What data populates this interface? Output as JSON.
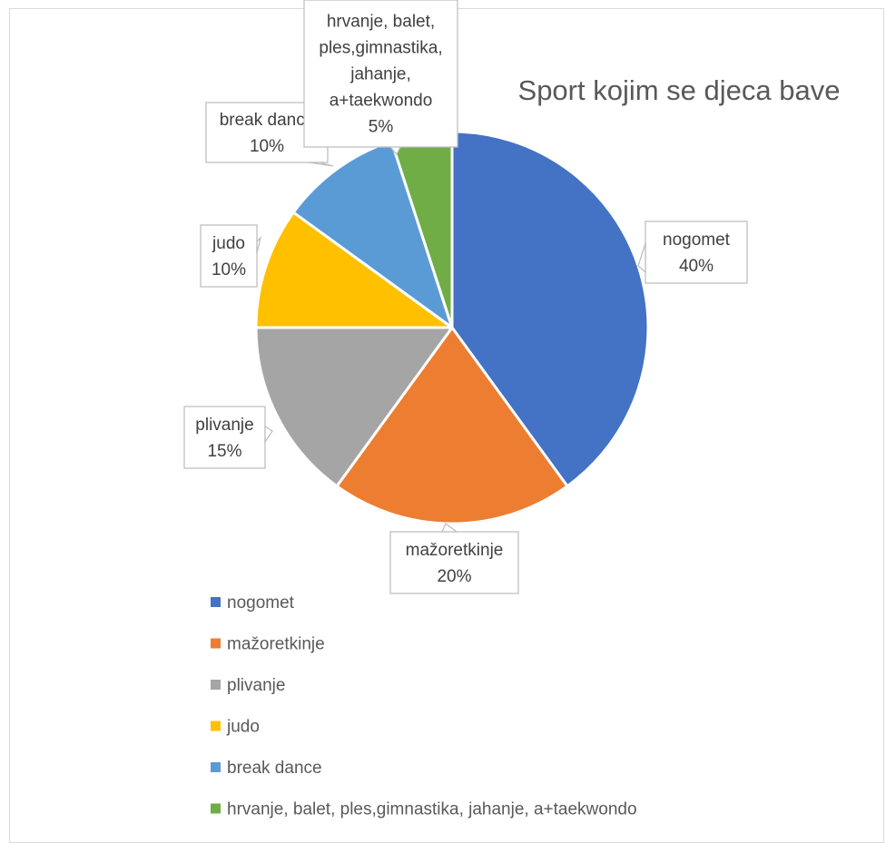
{
  "chart_data": {
    "type": "pie",
    "title": "Sport kojim se djeca bave",
    "categories": [
      "nogomet",
      "mažoretkinje",
      "plivanje",
      "judo",
      "break dance",
      "hrvanje, balet, ples,gimnastika, jahanje, a+taekwondo"
    ],
    "values": [
      40,
      20,
      15,
      10,
      10,
      5
    ],
    "data_labels": [
      [
        "nogomet",
        "40%"
      ],
      [
        "mažoretkinje",
        "20%"
      ],
      [
        "plivanje",
        "15%"
      ],
      [
        "judo",
        "10%"
      ],
      [
        "break dance",
        "10%"
      ],
      [
        "hrvanje, balet,",
        "ples,gimnastika,",
        "jahanje,",
        "a+taekwondo",
        "5%"
      ]
    ],
    "colors": [
      "#4472C4",
      "#ED7D31",
      "#A5A5A5",
      "#FFC000",
      "#5B9BD5",
      "#70AD47"
    ],
    "legend_position": "bottom-left"
  }
}
